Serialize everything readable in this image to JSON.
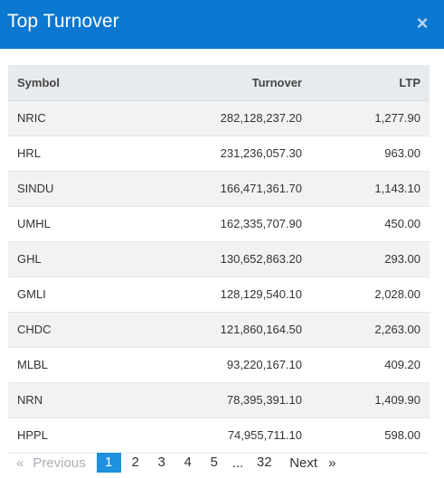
{
  "modal": {
    "title": "Top Turnover",
    "close_icon": "×"
  },
  "table": {
    "headers": {
      "symbol": "Symbol",
      "turnover": "Turnover",
      "ltp": "LTP"
    },
    "rows": [
      {
        "symbol": "NRIC",
        "turnover": "282,128,237.20",
        "ltp": "1,277.90"
      },
      {
        "symbol": "HRL",
        "turnover": "231,236,057.30",
        "ltp": "963.00"
      },
      {
        "symbol": "SINDU",
        "turnover": "166,471,361.70",
        "ltp": "1,143.10"
      },
      {
        "symbol": "UMHL",
        "turnover": "162,335,707.90",
        "ltp": "450.00"
      },
      {
        "symbol": "GHL",
        "turnover": "130,652,863.20",
        "ltp": "293.00"
      },
      {
        "symbol": "GMLI",
        "turnover": "128,129,540.10",
        "ltp": "2,028.00"
      },
      {
        "symbol": "CHDC",
        "turnover": "121,860,164.50",
        "ltp": "2,263.00"
      },
      {
        "symbol": "MLBL",
        "turnover": "93,220,167.10",
        "ltp": "409.20"
      },
      {
        "symbol": "NRN",
        "turnover": "78,395,391.10",
        "ltp": "1,409.90"
      },
      {
        "symbol": "HPPL",
        "turnover": "74,955,711.10",
        "ltp": "598.00"
      }
    ]
  },
  "pagination": {
    "prev_arrow": "«",
    "prev_label": "Previous",
    "pages": [
      "1",
      "2",
      "3",
      "4",
      "5"
    ],
    "active_page": "1",
    "ellipsis": "...",
    "last_page": "32",
    "next_label": "Next",
    "next_arrow": "»"
  },
  "colors": {
    "header_bg": "#0b77d1",
    "active_page_bg": "#1f8fdf",
    "table_header_bg": "#e8ebee"
  }
}
